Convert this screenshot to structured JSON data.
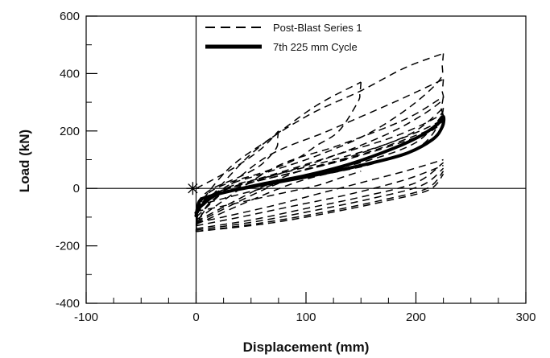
{
  "chart_data": {
    "type": "line",
    "title": "",
    "xlabel": "Displacement (mm)",
    "ylabel": "Load (kN)",
    "xlim": [
      -100,
      300
    ],
    "ylim": [
      -400,
      600
    ],
    "x_ticks": [
      -100,
      0,
      100,
      200,
      300
    ],
    "y_ticks": [
      -400,
      -200,
      0,
      200,
      400,
      600
    ],
    "x_tick_labels": [
      "-100",
      "0",
      "100",
      "200",
      "300"
    ],
    "y_tick_labels": [
      "-400",
      "-200",
      "0",
      "200",
      "400",
      "600"
    ],
    "zero_lines": true,
    "grid": false,
    "legend_position": "top",
    "colors": {
      "series": "#000000",
      "axes": "#000000",
      "background": "#ffffff"
    },
    "series": [
      {
        "name": "Post-Blast Series 1",
        "style": "dashed",
        "cycles": [
          {
            "loading": [
              [
                0,
                0
              ],
              [
                20,
                40
              ],
              [
                40,
                85
              ],
              [
                60,
                140
              ],
              [
                75,
                200
              ]
            ],
            "unloading": [
              [
                75,
                200
              ],
              [
                74,
                170
              ],
              [
                73,
                140
              ],
              [
                60,
                85
              ],
              [
                45,
                50
              ],
              [
                30,
                25
              ],
              [
                15,
                0
              ],
              [
                5,
                -30
              ],
              [
                0,
                -60
              ]
            ],
            "reverse": [
              [
                0,
                -60
              ],
              [
                10,
                -50
              ],
              [
                25,
                -35
              ],
              [
                45,
                -15
              ],
              [
                60,
                0
              ],
              [
                75,
                20
              ]
            ]
          },
          {
            "loading": [
              [
                0,
                -70
              ],
              [
                30,
                70
              ],
              [
                70,
                180
              ],
              [
                110,
                290
              ],
              [
                150,
                370
              ]
            ],
            "unloading": [
              [
                150,
                370
              ],
              [
                149,
                330
              ],
              [
                147,
                300
              ],
              [
                130,
                200
              ],
              [
                110,
                150
              ],
              [
                90,
                100
              ],
              [
                60,
                55
              ],
              [
                30,
                20
              ],
              [
                10,
                -20
              ],
              [
                0,
                -80
              ]
            ],
            "reverse": [
              [
                0,
                -80
              ],
              [
                20,
                -65
              ],
              [
                50,
                -40
              ],
              [
                80,
                -15
              ],
              [
                110,
                10
              ],
              [
                130,
                35
              ],
              [
                150,
                60
              ]
            ]
          },
          {
            "loading": [
              [
                0,
                -90
              ],
              [
                50,
                120
              ],
              [
                100,
                250
              ],
              [
                150,
                340
              ],
              [
                190,
                420
              ],
              [
                225,
                470
              ]
            ],
            "unloading": [
              [
                225,
                470
              ],
              [
                224,
                430
              ],
              [
                222,
                380
              ],
              [
                200,
                300
              ],
              [
                170,
                220
              ],
              [
                140,
                160
              ],
              [
                100,
                100
              ],
              [
                60,
                50
              ],
              [
                25,
                0
              ],
              [
                0,
                -120
              ]
            ],
            "reverse": [
              [
                0,
                -120
              ],
              [
                30,
                -95
              ],
              [
                70,
                -60
              ],
              [
                110,
                -20
              ],
              [
                150,
                20
              ],
              [
                190,
                60
              ],
              [
                225,
                100
              ]
            ]
          },
          {
            "loading": [
              [
                0,
                -100
              ],
              [
                60,
                100
              ],
              [
                120,
                200
              ],
              [
                180,
                300
              ],
              [
                225,
                380
              ]
            ],
            "unloading": [
              [
                225,
                380
              ],
              [
                224,
                340
              ],
              [
                222,
                300
              ],
              [
                190,
                220
              ],
              [
                150,
                150
              ],
              [
                100,
                80
              ],
              [
                50,
                20
              ],
              [
                15,
                -40
              ],
              [
                0,
                -130
              ]
            ],
            "reverse": [
              [
                0,
                -130
              ],
              [
                40,
                -100
              ],
              [
                90,
                -60
              ],
              [
                140,
                -20
              ],
              [
                190,
                30
              ],
              [
                225,
                80
              ]
            ]
          },
          {
            "loading": [
              [
                0,
                -110
              ],
              [
                70,
                70
              ],
              [
                130,
                150
              ],
              [
                190,
                240
              ],
              [
                225,
                320
              ]
            ],
            "unloading": [
              [
                225,
                320
              ],
              [
                223,
                280
              ],
              [
                220,
                250
              ],
              [
                180,
                180
              ],
              [
                130,
                120
              ],
              [
                80,
                60
              ],
              [
                30,
                0
              ],
              [
                5,
                -60
              ],
              [
                0,
                -140
              ]
            ],
            "reverse": [
              [
                0,
                -140
              ],
              [
                50,
                -110
              ],
              [
                100,
                -70
              ],
              [
                150,
                -30
              ],
              [
                200,
                20
              ],
              [
                225,
                90
              ]
            ]
          },
          {
            "loading": [
              [
                0,
                -115
              ],
              [
                80,
                40
              ],
              [
                140,
                110
              ],
              [
                195,
                190
              ],
              [
                225,
                280
              ]
            ],
            "unloading": [
              [
                225,
                280
              ],
              [
                223,
                250
              ],
              [
                215,
                220
              ],
              [
                170,
                150
              ],
              [
                120,
                95
              ],
              [
                70,
                45
              ],
              [
                30,
                5
              ],
              [
                5,
                -60
              ],
              [
                0,
                -145
              ]
            ],
            "reverse": [
              [
                0,
                -145
              ],
              [
                55,
                -115
              ],
              [
                110,
                -75
              ],
              [
                160,
                -35
              ],
              [
                205,
                10
              ],
              [
                225,
                70
              ]
            ]
          },
          {
            "loading": [
              [
                0,
                -120
              ],
              [
                80,
                25
              ],
              [
                150,
                90
              ],
              [
                200,
                160
              ],
              [
                225,
                260
              ]
            ],
            "unloading": [
              [
                225,
                260
              ],
              [
                222,
                230
              ],
              [
                210,
                200
              ],
              [
                160,
                130
              ],
              [
                110,
                75
              ],
              [
                60,
                30
              ],
              [
                20,
                -10
              ],
              [
                3,
                -70
              ],
              [
                0,
                -150
              ]
            ],
            "reverse": [
              [
                0,
                -150
              ],
              [
                60,
                -120
              ],
              [
                120,
                -80
              ],
              [
                170,
                -40
              ],
              [
                210,
                0
              ],
              [
                225,
                60
              ]
            ]
          },
          {
            "loading": [
              [
                0,
                -125
              ],
              [
                90,
                20
              ],
              [
                160,
                85
              ],
              [
                205,
                150
              ],
              [
                225,
                250
              ]
            ],
            "unloading": [
              [
                225,
                250
              ],
              [
                221,
                220
              ],
              [
                205,
                185
              ],
              [
                150,
                115
              ],
              [
                100,
                65
              ],
              [
                50,
                20
              ],
              [
                15,
                -20
              ],
              [
                2,
                -75
              ],
              [
                0,
                -150
              ]
            ],
            "reverse": [
              [
                0,
                -150
              ],
              [
                65,
                -122
              ],
              [
                125,
                -82
              ],
              [
                175,
                -42
              ],
              [
                212,
                -5
              ],
              [
                225,
                50
              ]
            ]
          }
        ]
      },
      {
        "name": "7th 225 mm Cycle",
        "style": "solid-thick",
        "path": [
          [
            0,
            -95
          ],
          [
            3,
            -45
          ],
          [
            10,
            -30
          ],
          [
            30,
            -10
          ],
          [
            60,
            15
          ],
          [
            100,
            45
          ],
          [
            140,
            85
          ],
          [
            180,
            140
          ],
          [
            205,
            185
          ],
          [
            220,
            225
          ],
          [
            225,
            250
          ],
          [
            224,
            215
          ],
          [
            215,
            170
          ],
          [
            190,
            120
          ],
          [
            150,
            80
          ],
          [
            100,
            40
          ],
          [
            50,
            5
          ],
          [
            20,
            -20
          ],
          [
            5,
            -60
          ],
          [
            0,
            -85
          ]
        ]
      }
    ],
    "annotations": [
      {
        "text": "",
        "shape": "asterisk",
        "x": -3,
        "y": 0
      }
    ]
  }
}
